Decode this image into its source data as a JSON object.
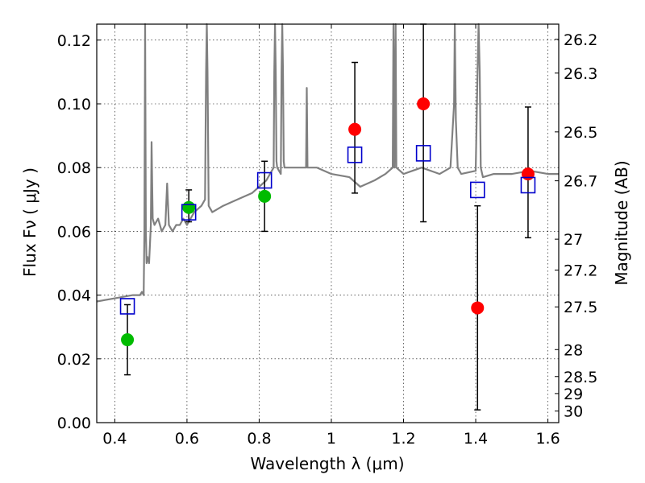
{
  "chart_data": {
    "type": "scatter",
    "xlabel": "Wavelength  λ (μm)",
    "ylabel": "Flux  Fν  ( μJy )",
    "y2label": "Magnitude (AB)",
    "xlim": [
      0.35,
      1.63
    ],
    "ylim": [
      0.0,
      0.125
    ],
    "grid": true,
    "x_ticks": [
      0.4,
      0.6,
      0.8,
      1.0,
      1.2,
      1.4,
      1.6
    ],
    "x_tick_labels": [
      "0.4",
      "0.6",
      "0.8",
      "1",
      "1.2",
      "1.4",
      "1.6"
    ],
    "y_ticks": [
      0.0,
      0.02,
      0.04,
      0.06,
      0.08,
      0.1,
      0.12
    ],
    "y_tick_labels": [
      "0.00",
      "0.02",
      "0.04",
      "0.06",
      "0.08",
      "0.10",
      "0.12"
    ],
    "y2_ticks": [
      {
        "label": "26.2",
        "mag": 26.2
      },
      {
        "label": "26.3",
        "mag": 26.3
      },
      {
        "label": "26.5",
        "mag": 26.5
      },
      {
        "label": "26.7",
        "mag": 26.7
      },
      {
        "label": "27",
        "mag": 27.0
      },
      {
        "label": "27.2",
        "mag": 27.2
      },
      {
        "label": "27.5",
        "mag": 27.5
      },
      {
        "label": "28",
        "mag": 28.0
      },
      {
        "label": "28.5",
        "mag": 28.5
      },
      {
        "label": "29",
        "mag": 29.0
      },
      {
        "label": "30",
        "mag": 30.0
      }
    ],
    "series": [
      {
        "kind": "spectrum",
        "color": "#808080",
        "x": [
          0.35,
          0.4,
          0.45,
          0.47,
          0.475,
          0.48,
          0.482,
          0.484,
          0.486,
          0.488,
          0.49,
          0.495,
          0.5,
          0.502,
          0.505,
          0.51,
          0.52,
          0.53,
          0.54,
          0.545,
          0.55,
          0.56,
          0.57,
          0.58,
          0.59,
          0.6,
          0.62,
          0.64,
          0.65,
          0.653,
          0.655,
          0.657,
          0.66,
          0.67,
          0.7,
          0.74,
          0.78,
          0.8,
          0.82,
          0.83,
          0.84,
          0.842,
          0.844,
          0.846,
          0.848,
          0.85,
          0.86,
          0.862,
          0.864,
          0.866,
          0.868,
          0.87,
          0.88,
          0.9,
          0.92,
          0.93,
          0.932,
          0.934,
          0.94,
          0.96,
          1.0,
          1.05,
          1.08,
          1.12,
          1.15,
          1.17,
          1.172,
          1.175,
          1.178,
          1.18,
          1.2,
          1.25,
          1.3,
          1.33,
          1.34,
          1.342,
          1.345,
          1.35,
          1.36,
          1.4,
          1.405,
          1.408,
          1.411,
          1.414,
          1.42,
          1.45,
          1.5,
          1.55,
          1.6,
          1.63
        ],
        "y": [
          0.038,
          0.039,
          0.04,
          0.04,
          0.041,
          0.04,
          0.06,
          0.125,
          0.06,
          0.05,
          0.052,
          0.05,
          0.062,
          0.088,
          0.064,
          0.062,
          0.064,
          0.06,
          0.062,
          0.075,
          0.062,
          0.06,
          0.062,
          0.062,
          0.064,
          0.062,
          0.066,
          0.068,
          0.07,
          0.11,
          0.125,
          0.11,
          0.068,
          0.066,
          0.068,
          0.07,
          0.072,
          0.074,
          0.076,
          0.078,
          0.08,
          0.11,
          0.125,
          0.11,
          0.082,
          0.08,
          0.078,
          0.11,
          0.125,
          0.11,
          0.082,
          0.08,
          0.08,
          0.08,
          0.08,
          0.08,
          0.105,
          0.08,
          0.08,
          0.08,
          0.078,
          0.077,
          0.074,
          0.076,
          0.078,
          0.08,
          0.125,
          0.08,
          0.125,
          0.08,
          0.078,
          0.08,
          0.078,
          0.08,
          0.1,
          0.125,
          0.095,
          0.08,
          0.078,
          0.079,
          0.11,
          0.125,
          0.11,
          0.08,
          0.077,
          0.078,
          0.078,
          0.079,
          0.078,
          0.078
        ]
      },
      {
        "kind": "points",
        "marker": "circle",
        "color": "#00bb00",
        "points": [
          {
            "x": 0.435,
            "y": 0.026,
            "err": [
              0.015,
              0.037
            ]
          },
          {
            "x": 0.605,
            "y": 0.0675,
            "err": [
              0.063,
              0.073
            ]
          },
          {
            "x": 0.815,
            "y": 0.071,
            "err": [
              0.06,
              0.082
            ]
          }
        ]
      },
      {
        "kind": "points",
        "marker": "circle",
        "color": "#ff0000",
        "points": [
          {
            "x": 1.065,
            "y": 0.092,
            "err": [
              0.072,
              0.113
            ]
          },
          {
            "x": 1.255,
            "y": 0.1,
            "err": [
              0.063,
              0.125
            ]
          },
          {
            "x": 1.405,
            "y": 0.036,
            "err": [
              0.004,
              0.068
            ]
          },
          {
            "x": 1.545,
            "y": 0.078,
            "err": [
              0.058,
              0.099
            ]
          }
        ]
      },
      {
        "kind": "points",
        "marker": "square",
        "color": "#0000cc",
        "points": [
          {
            "x": 0.435,
            "y": 0.0365
          },
          {
            "x": 0.605,
            "y": 0.066
          },
          {
            "x": 0.815,
            "y": 0.076
          },
          {
            "x": 1.065,
            "y": 0.084
          },
          {
            "x": 1.255,
            "y": 0.0845
          },
          {
            "x": 1.405,
            "y": 0.073
          },
          {
            "x": 1.545,
            "y": 0.0745
          }
        ]
      }
    ]
  }
}
